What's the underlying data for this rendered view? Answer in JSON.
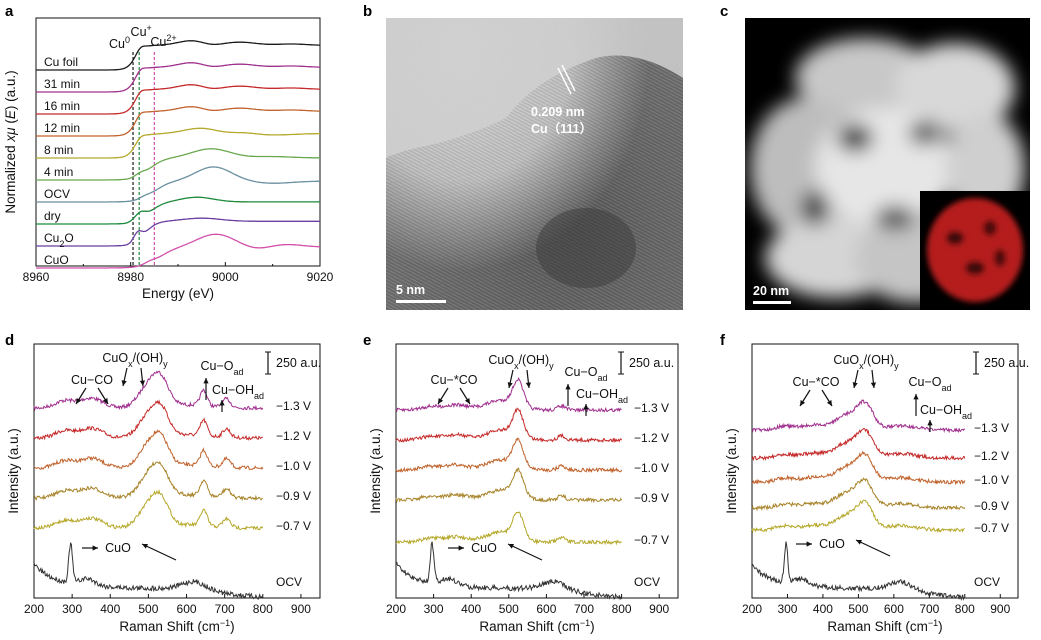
{
  "panels": {
    "a": {
      "letter": "a"
    },
    "b": {
      "letter": "b",
      "lattice_spacing": "0.209 nm",
      "lattice_plane": "Cu（111）",
      "scalebar_label": "5 nm"
    },
    "c": {
      "letter": "c",
      "scalebar_label": "20 nm"
    },
    "d": {
      "letter": "d"
    },
    "e": {
      "letter": "e"
    },
    "f": {
      "letter": "f"
    }
  },
  "colors": {
    "black": "#1a1a1a",
    "purple": "#a0308e",
    "red": "#c52a2a",
    "orange": "#c0632c",
    "olive": "#b5a82a",
    "green": "#6aa84f",
    "darkgreen": "#1e8a3c",
    "violet": "#6a3fa0",
    "gray": "#555555",
    "magenta": "#d24faa"
  },
  "chart_data": [
    {
      "id": "a",
      "type": "line",
      "xlabel": "Energy (eV)",
      "ylabel_main": "Normalized ",
      "ylabel_italic": "xμ",
      "ylabel_mid": " (",
      "ylabel_italic2": "E",
      "ylabel_end": ") (a.u.)",
      "xlim": [
        8960,
        9020
      ],
      "xticks": [
        "8960",
        "8980",
        "9000",
        "9020"
      ],
      "reference_lines": [
        {
          "label": "Cu",
          "sup": "0",
          "energy": 8980.5,
          "color": "#1a1a1a"
        },
        {
          "label": "Cu",
          "sup": "+",
          "energy": 8981.8,
          "color": "#1e8a3c"
        },
        {
          "label": "Cu",
          "sup": "2+",
          "energy": 8985.0,
          "color": "#d24faa"
        }
      ],
      "series": [
        {
          "name": "Cu foil",
          "sub": "",
          "color": "#1a1a1a",
          "shape": "foil"
        },
        {
          "name": "31 min",
          "sub": "",
          "color": "#a0308e",
          "shape": "metal"
        },
        {
          "name": "16 min",
          "sub": "",
          "color": "#c52a2a",
          "shape": "metal"
        },
        {
          "name": "12 min",
          "sub": "",
          "color": "#c0632c",
          "shape": "metal"
        },
        {
          "name": "8 min",
          "sub": "",
          "color": "#b5a82a",
          "shape": "mix"
        },
        {
          "name": "4 min",
          "sub": "",
          "color": "#6aa84f",
          "shape": "mix2"
        },
        {
          "name": "OCV",
          "sub": "",
          "color": "#6a8fa0",
          "shape": "ox"
        },
        {
          "name": "dry",
          "sub": "",
          "color": "#1e8a3c",
          "shape": "dry"
        },
        {
          "name": "Cu",
          "sub": "2",
          "name_end": "O",
          "color": "#6a3fa0",
          "shape": "cu2o"
        },
        {
          "name": "CuO",
          "sub": "",
          "color": "#d24faa",
          "shape": "cuo"
        }
      ]
    },
    {
      "id": "d",
      "type": "line",
      "xlabel": "Raman Shift (cm",
      "xlabel_sup": "−1",
      "xlabel_end": ")",
      "ylabel": "Intensity (a.u.)",
      "xlim": [
        200,
        950
      ],
      "xticks": [
        "200",
        "300",
        "400",
        "500",
        "600",
        "700",
        "800",
        "900"
      ],
      "scale_label": "250 a.u.",
      "annotations": {
        "cu_co": "Cu−CO",
        "cuox": "CuO",
        "cuox_sub": "x",
        "cuox_mid": "/(OH)",
        "cuox_sub2": "y",
        "cu_oad": "Cu−O",
        "oad_sub": "ad",
        "cu_ohad": "Cu−OH",
        "ohad_sub": "ad",
        "cuo": "CuO"
      },
      "series": [
        {
          "name": "−1.3 V",
          "color": "#a0308e",
          "profile": "d"
        },
        {
          "name": "−1.2 V",
          "color": "#c52a2a",
          "profile": "d"
        },
        {
          "name": "−1.0 V",
          "color": "#c0632c",
          "profile": "d"
        },
        {
          "name": "−0.9 V",
          "color": "#a8842a",
          "profile": "d"
        },
        {
          "name": "−0.7 V",
          "color": "#b5a82a",
          "profile": "d"
        },
        {
          "name": "OCV",
          "color": "#333333",
          "profile": "ocv"
        }
      ]
    },
    {
      "id": "e",
      "type": "line",
      "xlabel": "Raman Shift (cm",
      "xlabel_sup": "−1",
      "xlabel_end": ")",
      "ylabel": "Intensity (a.u.)",
      "xlim": [
        200,
        950
      ],
      "xticks": [
        "200",
        "300",
        "400",
        "500",
        "600",
        "700",
        "800",
        "900"
      ],
      "scale_label": "250 a.u.",
      "annotations": {
        "cu_co": "Cu−*CO",
        "cuox": "CuO",
        "cuox_sub": "x",
        "cuox_mid": "/(OH)",
        "cuox_sub2": "y",
        "cu_oad": "Cu−O",
        "oad_sub": "ad",
        "cu_ohad": "Cu−OH",
        "ohad_sub": "ad",
        "cuo": "CuO"
      },
      "series": [
        {
          "name": "−1.3 V",
          "color": "#a0308e",
          "profile": "e"
        },
        {
          "name": "−1.2 V",
          "color": "#c52a2a",
          "profile": "e"
        },
        {
          "name": "−1.0 V",
          "color": "#c0632c",
          "profile": "e"
        },
        {
          "name": "−0.9 V",
          "color": "#a8842a",
          "profile": "e"
        },
        {
          "name": "−0.7 V",
          "color": "#b5a82a",
          "profile": "e"
        },
        {
          "name": "OCV",
          "color": "#333333",
          "profile": "ocv"
        }
      ]
    },
    {
      "id": "f",
      "type": "line",
      "xlabel": "Raman Shift (cm",
      "xlabel_sup": "−1",
      "xlabel_end": ")",
      "ylabel": "Intensity (a.u.)",
      "xlim": [
        200,
        950
      ],
      "xticks": [
        "200",
        "300",
        "400",
        "500",
        "600",
        "700",
        "800",
        "900"
      ],
      "scale_label": "250 a.u.",
      "annotations": {
        "cu_co": "Cu−*CO",
        "cuox": "CuO",
        "cuox_sub": "x",
        "cuox_mid": "/(OH)",
        "cuox_sub2": "y",
        "cu_oad": "Cu−O",
        "oad_sub": "ad",
        "cu_ohad": "Cu−OH",
        "ohad_sub": "ad",
        "cuo": "CuO"
      },
      "series": [
        {
          "name": "−1.3 V",
          "color": "#a0308e",
          "profile": "f"
        },
        {
          "name": "−1.2 V",
          "color": "#c52a2a",
          "profile": "f"
        },
        {
          "name": "−1.0 V",
          "color": "#c0632c",
          "profile": "f"
        },
        {
          "name": "−0.9 V",
          "color": "#a8842a",
          "profile": "f"
        },
        {
          "name": "−0.7 V",
          "color": "#b5a82a",
          "profile": "f"
        },
        {
          "name": "OCV",
          "color": "#333333",
          "profile": "ocv"
        }
      ]
    }
  ]
}
